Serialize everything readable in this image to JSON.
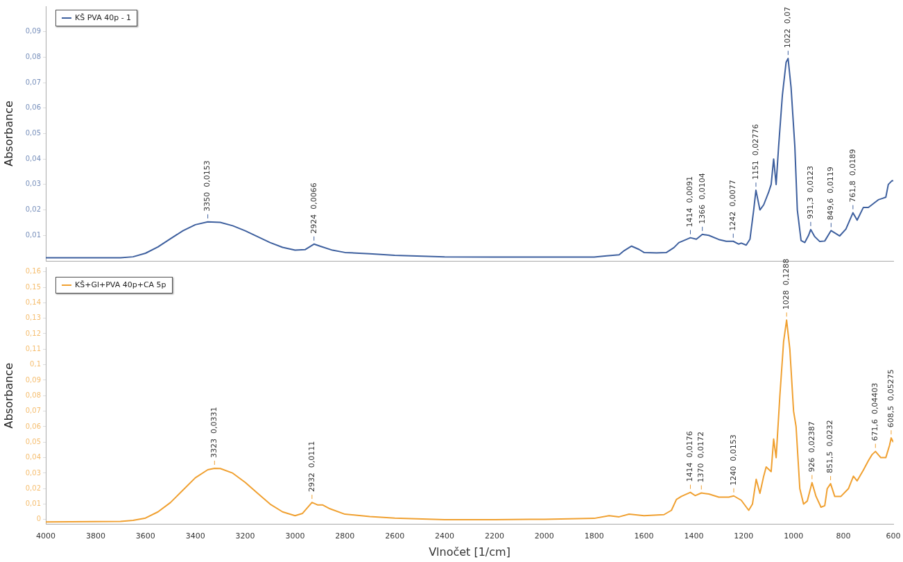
{
  "chart_data": [
    {
      "type": "line",
      "ylabel": "Absorbance",
      "legend": "top left",
      "grid": false,
      "marker": "none",
      "line_style": "solid",
      "tick_labels": "y",
      "xlim": [
        4000,
        600
      ],
      "xticks": [
        4000,
        3800,
        3600,
        3400,
        3200,
        3000,
        2800,
        2600,
        2400,
        2200,
        2000,
        1800,
        1600,
        1400,
        1200,
        1000,
        800,
        600
      ],
      "ylim": [
        0,
        0.1
      ],
      "yticks": [
        {
          "value": 0.01,
          "label": "0,01"
        },
        {
          "value": 0.02,
          "label": "0,02"
        },
        {
          "value": 0.03,
          "label": "0,03"
        },
        {
          "value": 0.04,
          "label": "0,04"
        },
        {
          "value": 0.05,
          "label": "0,05"
        },
        {
          "value": 0.06,
          "label": "0,06"
        },
        {
          "value": 0.07,
          "label": "0,07"
        },
        {
          "value": 0.08,
          "label": "0,08"
        },
        {
          "value": 0.09,
          "label": "0,09"
        }
      ],
      "series": [
        {
          "name": "KŠ PVA 40p - 1",
          "color": "#3d5f9e",
          "x": [
            4000,
            3700,
            3650,
            3600,
            3550,
            3500,
            3450,
            3400,
            3350,
            3300,
            3250,
            3200,
            3150,
            3100,
            3050,
            3000,
            2960,
            2924,
            2900,
            2850,
            2800,
            2700,
            2600,
            2400,
            2200,
            2000,
            1800,
            1750,
            1700,
            1680,
            1650,
            1620,
            1600,
            1550,
            1510,
            1480,
            1460,
            1440,
            1414,
            1390,
            1366,
            1340,
            1300,
            1270,
            1242,
            1220,
            1210,
            1190,
            1175,
            1160,
            1151,
            1135,
            1120,
            1100,
            1090,
            1080,
            1070,
            1060,
            1045,
            1030,
            1022,
            1010,
            995,
            985,
            970,
            955,
            940,
            931.3,
            915,
            895,
            875,
            849.6,
            835,
            815,
            790,
            761.8,
            745,
            720,
            700,
            680,
            660,
            645,
            630,
            620,
            605,
            600
          ],
          "values": [
            0.0012,
            0.0012,
            0.0016,
            0.003,
            0.0055,
            0.0087,
            0.0118,
            0.0142,
            0.0153,
            0.0151,
            0.0138,
            0.0118,
            0.0095,
            0.0072,
            0.0053,
            0.0042,
            0.0044,
            0.0066,
            0.0058,
            0.0042,
            0.0033,
            0.0028,
            0.0022,
            0.0016,
            0.0015,
            0.0015,
            0.0015,
            0.002,
            0.0024,
            0.004,
            0.0058,
            0.0045,
            0.0033,
            0.0031,
            0.0033,
            0.0052,
            0.0072,
            0.008,
            0.0091,
            0.0085,
            0.0104,
            0.01,
            0.0084,
            0.0077,
            0.0077,
            0.0066,
            0.007,
            0.0062,
            0.0085,
            0.02,
            0.02776,
            0.02,
            0.022,
            0.027,
            0.03,
            0.04,
            0.03,
            0.045,
            0.065,
            0.078,
            0.0795,
            0.068,
            0.045,
            0.02,
            0.008,
            0.0072,
            0.01,
            0.0123,
            0.0095,
            0.0076,
            0.0078,
            0.0119,
            0.011,
            0.0098,
            0.0125,
            0.0189,
            0.016,
            0.021,
            0.021,
            0.0225,
            0.024,
            0.0245,
            0.025,
            0.03,
            0.0315,
            0.0315
          ]
        }
      ],
      "annotations": [
        {
          "text": "3350  0,0153",
          "x": 3350,
          "y": 0.0153
        },
        {
          "text": "2924  0,0066",
          "x": 2924,
          "y": 0.0066
        },
        {
          "text": "1414  0,0091",
          "x": 1414,
          "y": 0.0091
        },
        {
          "text": "1366  0,0104",
          "x": 1366,
          "y": 0.0104
        },
        {
          "text": "1242  0,0077",
          "x": 1242,
          "y": 0.0077
        },
        {
          "text": "1151  0,02776",
          "x": 1151,
          "y": 0.02776
        },
        {
          "text": "1022  0,07",
          "x": 1022,
          "y": 0.0795
        },
        {
          "text": "931,3  0,0123",
          "x": 931.3,
          "y": 0.0123
        },
        {
          "text": "849,6  0,0119",
          "x": 849.6,
          "y": 0.0119
        },
        {
          "text": "761,8  0,0189",
          "x": 761.8,
          "y": 0.0189
        }
      ]
    },
    {
      "type": "line",
      "xlabel": "Vlnočet [1/cm]",
      "ylabel": "Absorbance",
      "legend": "top left",
      "grid": false,
      "marker": "none",
      "line_style": "solid",
      "xlim": [
        4000,
        600
      ],
      "xticks": [
        4000,
        3800,
        3600,
        3400,
        3200,
        3000,
        2800,
        2600,
        2400,
        2200,
        2000,
        1800,
        1600,
        1400,
        1200,
        1000,
        800,
        600
      ],
      "ylim": [
        -0.003,
        0.163
      ],
      "yticks": [
        0,
        {
          "value": 0.01,
          "label": "0,01"
        },
        {
          "value": 0.02,
          "label": "0,02"
        },
        {
          "value": 0.03,
          "label": "0,03"
        },
        {
          "value": 0.04,
          "label": "0,04"
        },
        {
          "value": 0.05,
          "label": "0,05"
        },
        {
          "value": 0.06,
          "label": "0,06"
        },
        {
          "value": 0.07,
          "label": "0,07"
        },
        {
          "value": 0.08,
          "label": "0,08"
        },
        {
          "value": 0.09,
          "label": "0,09"
        },
        {
          "value": 0.1,
          "label": "0,1"
        },
        {
          "value": 0.11,
          "label": "0,11"
        },
        {
          "value": 0.12,
          "label": "0,12"
        },
        {
          "value": 0.13,
          "label": "0,13"
        },
        {
          "value": 0.14,
          "label": "0,14"
        },
        {
          "value": 0.15,
          "label": "0,15"
        },
        {
          "value": 0.16,
          "label": "0,16"
        }
      ],
      "series": [
        {
          "name": "KŠ+Gl+PVA 40p+CA 5p",
          "color": "#f0a030",
          "x": [
            4000,
            3700,
            3650,
            3600,
            3550,
            3500,
            3450,
            3400,
            3350,
            3323,
            3300,
            3250,
            3200,
            3150,
            3100,
            3050,
            3000,
            2970,
            2932,
            2910,
            2890,
            2860,
            2800,
            2700,
            2600,
            2400,
            2200,
            2000,
            1800,
            1740,
            1700,
            1660,
            1600,
            1520,
            1490,
            1470,
            1450,
            1414,
            1395,
            1370,
            1340,
            1300,
            1260,
            1240,
            1210,
            1180,
            1165,
            1150,
            1135,
            1120,
            1110,
            1090,
            1080,
            1070,
            1055,
            1040,
            1028,
            1015,
            1000,
            990,
            975,
            960,
            945,
            926,
            910,
            890,
            875,
            865,
            851.5,
            835,
            810,
            780,
            760,
            745,
            720,
            700,
            685,
            671.6,
            650,
            630,
            615,
            608.5,
            600
          ],
          "values": [
            -0.0015,
            -0.0012,
            -0.0005,
            0.001,
            0.005,
            0.011,
            0.019,
            0.027,
            0.0322,
            0.0331,
            0.033,
            0.03,
            0.024,
            0.017,
            0.01,
            0.005,
            0.0025,
            0.004,
            0.0111,
            0.0095,
            0.0095,
            0.007,
            0.0035,
            0.002,
            0.001,
            0,
            0,
            0.0002,
            0.0008,
            0.0025,
            0.0018,
            0.0035,
            0.0025,
            0.0032,
            0.006,
            0.013,
            0.015,
            0.0176,
            0.0155,
            0.0172,
            0.0165,
            0.0145,
            0.0145,
            0.0153,
            0.0125,
            0.006,
            0.01,
            0.026,
            0.017,
            0.028,
            0.034,
            0.031,
            0.052,
            0.04,
            0.08,
            0.115,
            0.1288,
            0.11,
            0.07,
            0.06,
            0.02,
            0.01,
            0.012,
            0.02387,
            0.015,
            0.008,
            0.009,
            0.02,
            0.0232,
            0.015,
            0.015,
            0.02,
            0.028,
            0.025,
            0.032,
            0.038,
            0.042,
            0.04403,
            0.04,
            0.04,
            0.048,
            0.05275,
            0.05
          ]
        }
      ],
      "annotations": [
        {
          "text": "3323  0,0331",
          "x": 3323,
          "y": 0.0331
        },
        {
          "text": "2932  0,0111",
          "x": 2932,
          "y": 0.0111
        },
        {
          "text": "1414  0,0176",
          "x": 1414,
          "y": 0.0176
        },
        {
          "text": "1370  0,0172",
          "x": 1370,
          "y": 0.0172
        },
        {
          "text": "1240  0,0153",
          "x": 1240,
          "y": 0.0153
        },
        {
          "text": "1028  0,1288",
          "x": 1028,
          "y": 0.1288
        },
        {
          "text": "926  0,02387",
          "x": 926,
          "y": 0.02387
        },
        {
          "text": "851,5  0,0232",
          "x": 851.5,
          "y": 0.0232
        },
        {
          "text": "671,6  0,04403",
          "x": 671.6,
          "y": 0.04403
        },
        {
          "text": "608,5  0,05275",
          "x": 608.5,
          "y": 0.05275
        }
      ]
    }
  ]
}
